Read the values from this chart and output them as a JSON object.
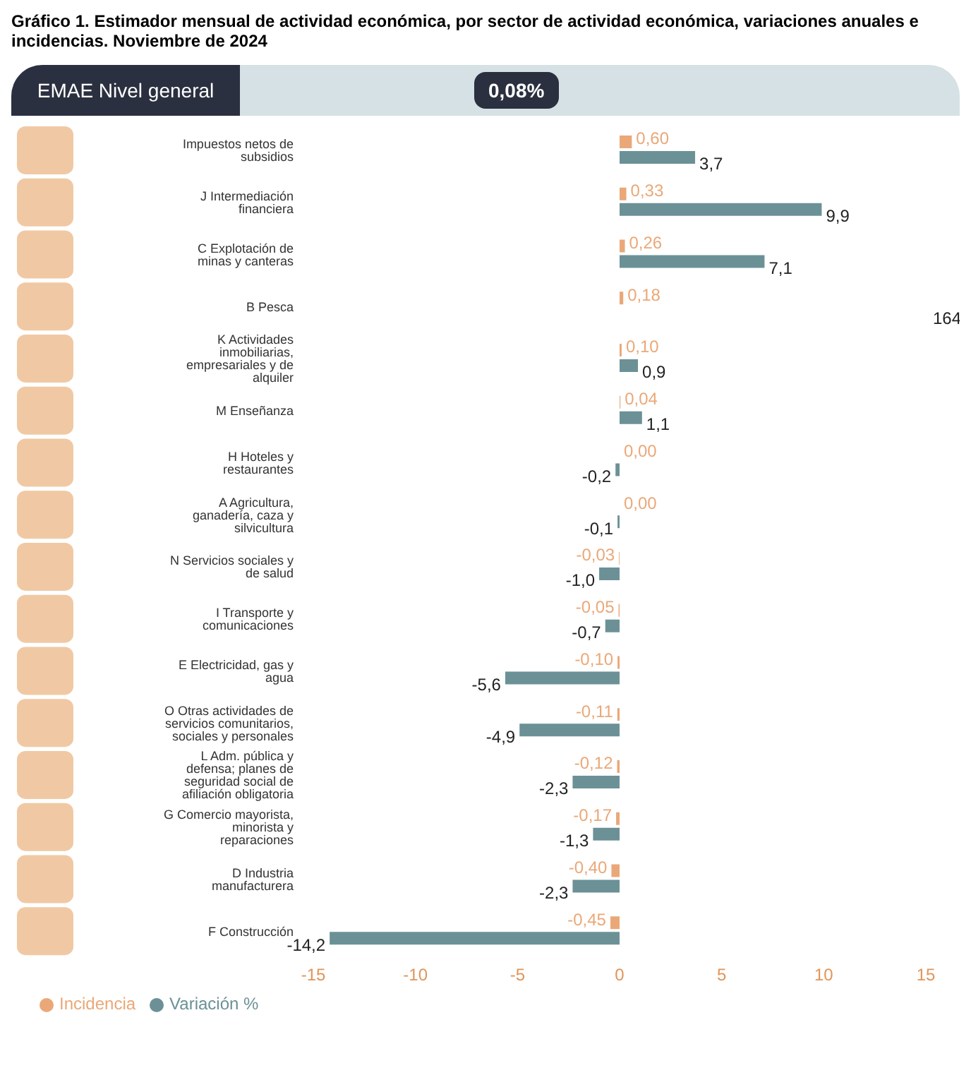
{
  "chart_data": {
    "type": "bar",
    "orientation": "horizontal",
    "title": "Gráfico 1.  Estimador mensual de actividad económica, por sector de actividad económica, variaciones anuales e incidencias. Noviembre de 2024",
    "annotations": [
      "EMAE Nivel general",
      "0,08%",
      "164"
    ],
    "categories": [
      "Impuestos netos de subsidios",
      "J Intermediación financiera",
      "C Explotación de minas y canteras",
      "B Pesca",
      "K Actividades inmobiliarias, empresariales y de alquiler",
      "M Enseñanza",
      "H Hoteles y restaurantes",
      "A Agricultura, ganadería, caza y silvicultura",
      "N Servicios sociales y de salud",
      "I Transporte y comunicaciones",
      "E Electricidad, gas y agua",
      "O Otras actividades de servicios comunitarios, sociales y personales",
      "L Adm. pública y defensa; planes de seguridad social de afiliación obligatoria",
      "G Comercio mayorista, minorista y reparaciones",
      "D Industria manufacturera",
      "F Construcción"
    ],
    "series": [
      {
        "name": "Incidencia",
        "color": "#eaa878",
        "values": [
          0.6,
          0.33,
          0.26,
          0.18,
          0.1,
          0.04,
          0.0,
          0.0,
          -0.03,
          -0.05,
          -0.1,
          -0.11,
          -0.12,
          -0.17,
          -0.4,
          -0.45
        ],
        "value_labels": [
          "0,60",
          "0,33",
          "0,26",
          "0,18",
          "0,10",
          "0,04",
          "0,00",
          "0,00",
          "-0,03",
          "-0,05",
          "-0,10",
          "-0,11",
          "-0,12",
          "-0,17",
          "-0,40",
          "-0,45"
        ]
      },
      {
        "name": "Variación %",
        "color": "#6b9196",
        "values": [
          3.7,
          9.9,
          7.1,
          null,
          0.9,
          1.1,
          -0.2,
          -0.1,
          -1.0,
          -0.7,
          -5.6,
          -4.9,
          -2.3,
          -1.3,
          -2.3,
          -14.2
        ],
        "value_labels": [
          "3,7",
          "9,9",
          "7,1",
          null,
          "0,9",
          "1,1",
          "-0,2",
          "-0,1",
          "-1,0",
          "-0,7",
          "-5,6",
          "-4,9",
          "-2,3",
          "-1,3",
          "-2,3",
          "-14,2"
        ]
      }
    ],
    "xlim": [
      -15,
      15
    ],
    "xticks": [
      -15,
      -10,
      -5,
      0,
      5,
      10,
      15
    ],
    "legend": "bottom left"
  }
}
